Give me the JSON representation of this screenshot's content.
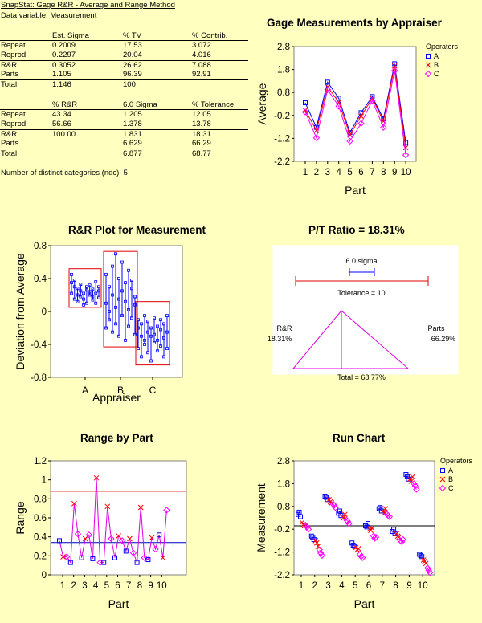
{
  "header": {
    "title": "SnapStat: Gage R&R - Average and Range Method",
    "data_variable": "Data variable: Measurement"
  },
  "table1": {
    "columns": [
      "",
      "Est. Sigma",
      "% TV",
      "% Contrib."
    ],
    "rows": [
      [
        "Repeat",
        "0.2009",
        "17.53",
        "3.072"
      ],
      [
        "Reprod",
        "0.2297",
        "20.04",
        "4.016"
      ],
      [
        "R&R",
        "0.3052",
        "26.62",
        "7.088"
      ],
      [
        "Parts",
        "1.105",
        "96.39",
        "92.91"
      ],
      [
        "Total",
        "1.146",
        "100",
        ""
      ]
    ]
  },
  "table2": {
    "columns": [
      "",
      "% R&R",
      "6.0 Sigma",
      "% Tolerance"
    ],
    "rows": [
      [
        "Repeat",
        "43.34",
        "1.205",
        "12.05"
      ],
      [
        "Reprod",
        "56.66",
        "1.378",
        "13.78"
      ],
      [
        "R&R",
        "100.00",
        "1.831",
        "18.31"
      ],
      [
        "Parts",
        "",
        "6.629",
        "66.29"
      ],
      [
        "Total",
        "",
        "6.877",
        "68.77"
      ]
    ]
  },
  "ndc_text": "Number of distinct categories (ndc): 5",
  "chart_data": [
    {
      "id": "gage",
      "type": "line",
      "title": "Gage Measurements by Appraiser",
      "xlabel": "Part",
      "ylabel": "Average",
      "x": [
        1,
        2,
        3,
        4,
        5,
        6,
        7,
        8,
        9,
        10
      ],
      "ylim": [
        -2.2,
        2.8
      ],
      "yticks": [
        "2.8",
        "1.8",
        "0.8",
        "-0.2",
        "-1.2",
        "-2.2"
      ],
      "legend_title": "Operators",
      "series": [
        {
          "name": "A",
          "color": "#0000ff",
          "marker": "square",
          "values": [
            0.35,
            -0.72,
            1.25,
            0.55,
            -0.95,
            -0.08,
            0.62,
            -0.35,
            2.05,
            -1.38
          ]
        },
        {
          "name": "B",
          "color": "#ff0000",
          "marker": "x",
          "values": [
            0.02,
            -0.85,
            1.05,
            0.38,
            -1.05,
            -0.23,
            0.55,
            -0.45,
            1.95,
            -1.6
          ]
        },
        {
          "name": "C",
          "color": "#ff00ff",
          "marker": "diamond",
          "values": [
            -0.05,
            -1.18,
            0.92,
            0.2,
            -1.32,
            -0.55,
            0.45,
            -0.72,
            1.75,
            -1.92
          ]
        }
      ]
    },
    {
      "id": "rr",
      "type": "scatter",
      "title": "R&R Plot for Measurement",
      "xlabel": "Appraiser",
      "ylabel": "Deviation from Average",
      "categories": [
        "A",
        "B",
        "C"
      ],
      "ylim": [
        -0.8,
        0.8
      ],
      "yticks": [
        "0.8",
        "0.4",
        "0",
        "-0.4",
        "-0.8"
      ],
      "boxes": [
        {
          "appraiser": "A",
          "low": 0.05,
          "high": 0.52
        },
        {
          "appraiser": "B",
          "low": -0.43,
          "high": 0.73
        },
        {
          "appraiser": "C",
          "low": -0.65,
          "high": 0.12
        }
      ],
      "points": {
        "A": [
          0.45,
          0.35,
          0.22,
          0.3,
          0.15,
          0.38,
          0.2,
          0.12,
          0.28,
          0.18,
          0.25,
          0.33,
          0.08,
          0.22,
          0.15,
          0.3,
          0.1,
          0.26,
          0.2,
          0.24,
          0.32,
          0.14,
          0.27,
          0.18,
          0.36,
          0.22,
          0.1,
          0.3,
          0.17,
          0.25
        ],
        "B": [
          0.1,
          -0.2,
          0.45,
          0.0,
          0.3,
          -0.1,
          0.55,
          -0.25,
          0.2,
          0.7,
          -0.15,
          0.05,
          0.4,
          -0.3,
          0.15,
          0.6,
          -0.05,
          0.25,
          -0.35,
          0.35,
          0.12,
          -0.18,
          0.5,
          0.02,
          0.28,
          -0.08,
          0.38,
          -0.28,
          0.18,
          0.08
        ],
        "C": [
          -0.2,
          -0.45,
          -0.1,
          -0.3,
          -0.55,
          -0.15,
          -0.35,
          -0.05,
          -0.4,
          -0.25,
          -0.5,
          -0.12,
          -0.3,
          -0.6,
          -0.2,
          -0.38,
          -0.08,
          -0.28,
          -0.48,
          -0.18,
          -0.35,
          -0.22,
          -0.42,
          -0.1,
          -0.32,
          -0.55,
          -0.15,
          -0.25,
          -0.45,
          -0.05
        ]
      }
    },
    {
      "id": "pt",
      "type": "diagram",
      "title": "P/T Ratio = 18.31%",
      "sigma_label": "6.0 sigma",
      "tolerance_label": "Tolerance = 10",
      "rr_label": "R&R",
      "rr_value": "18.31%",
      "parts_label": "Parts",
      "parts_value": "66.29%",
      "total_label": "Total = 68.77%"
    },
    {
      "id": "range",
      "type": "line",
      "title": "Range by Part",
      "xlabel": "Part",
      "ylabel": "Range",
      "ylim": [
        0,
        1.2
      ],
      "yticks": [
        "1.2",
        "1",
        "0.8",
        "0.6",
        "0.4",
        "0.2",
        "0"
      ],
      "x_ticks": [
        "1",
        "2",
        "3",
        "4",
        "5",
        "6",
        "7",
        "8",
        "9",
        "10"
      ],
      "ucl": 0.88,
      "center": 0.34,
      "values": [
        0.36,
        0.19,
        0.19,
        0.13,
        0.75,
        0.43,
        0.18,
        0.38,
        0.42,
        0.17,
        1.02,
        0.13,
        0.13,
        0.72,
        0.38,
        0.18,
        0.41,
        0.36,
        0.25,
        0.38,
        0.23,
        0.13,
        0.71,
        0.18,
        0.16,
        0.39,
        0.27,
        0.42,
        0.18,
        0.68
      ]
    },
    {
      "id": "run",
      "type": "scatter",
      "title": "Run Chart",
      "xlabel": "Part",
      "ylabel": "Measurement",
      "ylim": [
        -2.2,
        2.8
      ],
      "yticks": [
        "2.8",
        "1.8",
        "0.8",
        "-0.2",
        "-1.2",
        "-2.2"
      ],
      "x_ticks": [
        "1",
        "2",
        "3",
        "4",
        "5",
        "6",
        "7",
        "8",
        "9",
        "10"
      ],
      "center": -0.05,
      "legend_title": "Operators",
      "series": [
        {
          "name": "A",
          "color": "#0000ff",
          "marker": "square",
          "values": [
            [
              0.45,
              0.55,
              0.35
            ],
            [
              -0.5,
              -0.55,
              -0.65
            ],
            [
              1.25,
              1.2,
              1.1
            ],
            [
              0.5,
              0.6,
              0.4
            ],
            [
              -0.8,
              -0.9,
              -0.95
            ],
            [
              -0.05,
              -0.1,
              0.05
            ],
            [
              0.7,
              0.75,
              0.6
            ],
            [
              -0.3,
              -0.2,
              -0.4
            ],
            [
              2.2,
              2.1,
              2.0
            ],
            [
              -1.3,
              -1.35,
              -1.4
            ]
          ]
        },
        {
          "name": "B",
          "color": "#ff0000",
          "marker": "x",
          "values": [
            [
              0.1,
              0.0,
              -0.05
            ],
            [
              -0.7,
              -0.8,
              -0.95
            ],
            [
              1.1,
              1.0,
              0.95
            ],
            [
              0.35,
              0.3,
              0.45
            ],
            [
              -1.0,
              -1.1,
              -1.05
            ],
            [
              -0.2,
              -0.25,
              -0.15
            ],
            [
              0.6,
              0.5,
              0.7
            ],
            [
              -0.4,
              -0.5,
              -0.55
            ],
            [
              2.0,
              1.9,
              2.1
            ],
            [
              -1.55,
              -1.6,
              -1.7
            ]
          ]
        },
        {
          "name": "C",
          "color": "#ff00ff",
          "marker": "diamond",
          "values": [
            [
              -0.05,
              -0.1,
              -0.2
            ],
            [
              -1.1,
              -1.25,
              -1.35
            ],
            [
              0.9,
              0.85,
              0.75
            ],
            [
              0.2,
              0.15,
              0.05
            ],
            [
              -1.3,
              -1.4,
              -1.45
            ],
            [
              -0.5,
              -0.6,
              -0.55
            ],
            [
              0.45,
              0.4,
              0.35
            ],
            [
              -0.7,
              -0.75,
              -0.65
            ],
            [
              1.8,
              1.7,
              1.55
            ],
            [
              -1.9,
              -2.0,
              -2.1
            ]
          ]
        }
      ]
    }
  ]
}
